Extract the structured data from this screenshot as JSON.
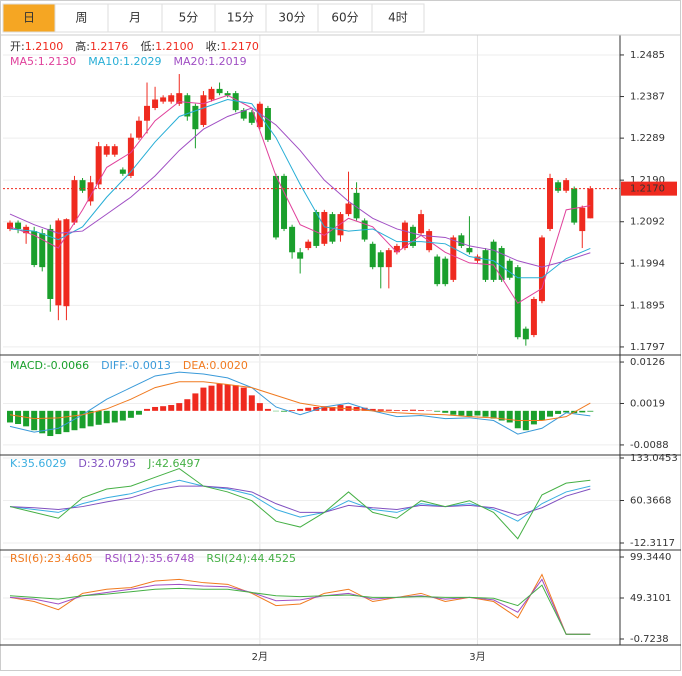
{
  "tabs": {
    "items": [
      "日",
      "周",
      "月",
      "5分",
      "15分",
      "30分",
      "60分",
      "4时"
    ],
    "active": 0
  },
  "chart_data": [
    {
      "type": "candlestick",
      "header": [
        {
          "label": "开:",
          "value": "1.2100"
        },
        {
          "label": "高:",
          "value": "1.2176"
        },
        {
          "label": "低:",
          "value": "1.2100"
        },
        {
          "label": "收:",
          "value": "1.2170"
        }
      ],
      "categories": [
        null,
        null,
        null,
        null,
        null,
        null,
        null,
        null,
        null,
        null,
        null,
        null,
        null,
        null,
        null,
        null,
        null,
        null,
        null,
        null,
        null,
        null,
        null,
        null,
        null,
        null,
        null,
        null,
        null,
        null,
        null,
        "2月",
        null,
        null,
        null,
        null,
        null,
        null,
        null,
        null,
        null,
        null,
        null,
        null,
        null,
        null,
        null,
        null,
        null,
        null,
        null,
        null,
        null,
        null,
        null,
        null,
        null,
        null,
        "3月",
        null,
        null,
        null,
        null,
        null,
        null,
        null,
        null,
        null,
        null,
        null,
        null,
        null,
        null
      ],
      "open": [
        1.2075,
        1.209,
        1.2065,
        1.207,
        1.2065,
        1.2075,
        1.1895,
        1.1893,
        1.209,
        1.219,
        1.214,
        1.218,
        1.225,
        1.225,
        1.2215,
        1.22,
        1.229,
        1.233,
        1.236,
        1.2375,
        1.2375,
        1.237,
        1.239,
        1.2365,
        1.232,
        1.238,
        1.2405,
        1.2395,
        1.2395,
        1.2355,
        1.235,
        1.2315,
        1.236,
        1.22,
        1.22,
        1.208,
        1.202,
        1.203,
        1.2115,
        1.204,
        1.211,
        1.206,
        1.211,
        1.216,
        1.2095,
        1.204,
        1.202,
        1.1985,
        1.202,
        1.203,
        1.208,
        1.2065,
        1.2025,
        1.201,
        1.2005,
        1.1955,
        1.206,
        1.203,
        1.2,
        1.2025,
        1.2045,
        1.203,
        1.2,
        1.1985,
        1.184,
        1.1825,
        1.1905,
        1.2075,
        1.2185,
        1.2165,
        1.217,
        1.207,
        1.21
      ],
      "high": [
        1.2095,
        1.2095,
        1.2085,
        1.208,
        1.2075,
        1.2085,
        1.21,
        1.21,
        1.22,
        1.2195,
        1.22,
        1.228,
        1.2275,
        1.2275,
        1.222,
        1.23,
        1.234,
        1.242,
        1.241,
        1.239,
        1.2395,
        1.244,
        1.2395,
        1.237,
        1.24,
        1.241,
        1.242,
        1.24,
        1.24,
        1.236,
        1.2355,
        1.2375,
        1.2365,
        1.2205,
        1.2205,
        1.2085,
        1.203,
        1.205,
        1.212,
        1.212,
        1.2115,
        1.2115,
        1.221,
        1.2185,
        1.21,
        1.2045,
        1.2025,
        1.203,
        1.204,
        1.2095,
        1.2085,
        1.212,
        1.2075,
        1.2015,
        1.201,
        1.206,
        1.2065,
        1.2105,
        1.2015,
        1.203,
        1.205,
        1.2035,
        1.2005,
        1.199,
        1.1845,
        1.1915,
        1.206,
        1.2205,
        1.219,
        1.2195,
        1.2175,
        1.213,
        1.2176
      ],
      "low": [
        1.207,
        1.2065,
        1.204,
        1.1985,
        1.1975,
        1.188,
        1.186,
        1.186,
        1.2085,
        1.216,
        1.213,
        1.217,
        1.2245,
        1.2245,
        1.22,
        1.2195,
        1.2285,
        1.23,
        1.2355,
        1.237,
        1.237,
        1.2365,
        1.233,
        1.2265,
        1.2315,
        1.2375,
        1.239,
        1.2385,
        1.235,
        1.233,
        1.232,
        1.231,
        1.228,
        1.205,
        1.207,
        1.2005,
        1.197,
        1.2025,
        1.203,
        1.2035,
        1.204,
        1.2045,
        1.2105,
        1.2095,
        1.2045,
        1.198,
        1.1935,
        1.1935,
        1.2015,
        1.2025,
        1.203,
        1.206,
        1.202,
        1.194,
        1.194,
        1.195,
        1.203,
        1.2015,
        1.1995,
        1.195,
        1.195,
        1.195,
        1.1955,
        1.1815,
        1.18,
        1.182,
        1.19,
        1.207,
        1.216,
        1.216,
        1.2085,
        1.203,
        1.21
      ],
      "close": [
        1.209,
        1.2075,
        1.208,
        1.199,
        1.1985,
        1.191,
        1.2095,
        1.2098,
        1.219,
        1.2165,
        1.2185,
        1.227,
        1.227,
        1.227,
        1.2205,
        1.229,
        1.233,
        1.2365,
        1.238,
        1.2385,
        1.239,
        1.2395,
        1.234,
        1.231,
        1.239,
        1.2405,
        1.2395,
        1.239,
        1.2355,
        1.2335,
        1.2325,
        1.237,
        1.2285,
        1.2055,
        1.2075,
        1.202,
        1.2005,
        1.2045,
        1.2035,
        1.2115,
        1.2045,
        1.211,
        1.2135,
        1.21,
        1.205,
        1.1985,
        1.1985,
        1.2025,
        1.2035,
        1.209,
        1.2035,
        1.211,
        1.207,
        1.1945,
        1.1945,
        1.2055,
        1.2035,
        1.202,
        1.201,
        1.1955,
        1.1955,
        1.1955,
        1.196,
        1.182,
        1.1815,
        1.191,
        1.2055,
        1.2195,
        1.2165,
        1.219,
        1.209,
        1.2125,
        1.217
      ],
      "up_color": "#ef2a1f",
      "down_color": "#1a9f2c",
      "ylim": [
        1.1778,
        1.2532
      ],
      "yticks": [
        1.2485,
        1.2387,
        1.2289,
        {
          "value": 1.219,
          "label": "1.2190"
        },
        1.2092,
        1.1994,
        1.1895,
        1.1797
      ],
      "last_price": {
        "value": 1.217,
        "label": "1.2170"
      },
      "x": [
        0,
        3,
        6,
        9,
        12,
        15,
        18,
        21,
        24,
        27,
        30,
        33,
        36,
        39,
        42,
        45,
        48,
        51,
        54,
        57,
        60,
        63,
        66,
        69,
        72
      ],
      "series": [
        {
          "name": "MA5:",
          "value_label": "1.2130",
          "color": "#e0419b",
          "values": [
            1.208,
            1.206,
            1.203,
            1.212,
            1.222,
            1.2255,
            1.233,
            1.2375,
            1.237,
            1.239,
            1.236,
            1.22,
            1.2085,
            1.206,
            1.21,
            1.208,
            1.202,
            1.206,
            1.202,
            1.1995,
            1.199,
            1.19,
            1.1935,
            1.212,
            1.213
          ]
        },
        {
          "name": "MA10:",
          "value_label": "1.2029",
          "color": "#27aed6",
          "values": [
            1.2075,
            1.207,
            1.205,
            1.208,
            1.215,
            1.221,
            1.228,
            1.234,
            1.236,
            1.238,
            1.237,
            1.229,
            1.218,
            1.208,
            1.207,
            1.2075,
            1.2045,
            1.2045,
            1.204,
            1.201,
            1.2,
            1.196,
            1.196,
            1.2005,
            1.2029
          ]
        },
        {
          "name": "MA20:",
          "value_label": "1.2019",
          "color": "#a04fc4",
          "values": [
            1.211,
            1.2085,
            1.2065,
            1.207,
            1.211,
            1.215,
            1.22,
            1.226,
            1.231,
            1.234,
            1.236,
            1.232,
            1.226,
            1.219,
            1.214,
            1.21,
            1.2075,
            1.206,
            1.2055,
            1.2035,
            1.2025,
            1.2,
            1.1985,
            1.2,
            1.2019
          ]
        }
      ]
    },
    {
      "type": "macd",
      "bar_name": "MACD:",
      "bar_value_label": "-0.0066",
      "bar_label_color": "#1a9f2c",
      "bars": [
        -0.003,
        -0.0034,
        -0.004,
        -0.005,
        -0.0058,
        -0.0065,
        -0.006,
        -0.0055,
        -0.005,
        -0.0045,
        -0.004,
        -0.0036,
        -0.0032,
        -0.003,
        -0.0025,
        -0.0018,
        -0.001,
        0.0005,
        0.001,
        0.0012,
        0.0015,
        0.002,
        0.003,
        0.0045,
        0.006,
        0.0065,
        0.007,
        0.0068,
        0.0066,
        0.006,
        0.004,
        0.002,
        0.0005,
        -0.0001,
        -0.0002,
        0.0002,
        0.0005,
        0.0008,
        0.001,
        0.0012,
        0.001,
        0.0015,
        0.0012,
        0.001,
        0.0008,
        0.0005,
        0.0004,
        0.0003,
        0.0002,
        0.0002,
        0.0003,
        0.0002,
        0.0001,
        -0.0002,
        -0.0005,
        -0.001,
        -0.0012,
        -0.0014,
        -0.0012,
        -0.0015,
        -0.002,
        -0.0025,
        -0.003,
        -0.0045,
        -0.005,
        -0.0035,
        -0.0025,
        -0.0015,
        -0.0008,
        -0.0004,
        -0.0006,
        -0.0004,
        -0.0002
      ],
      "up_color": "#ef2a1f",
      "down_color": "#1a9f2c",
      "ylim": [
        -0.0114,
        0.0139
      ],
      "yticks": [
        0.0126,
        0.0019,
        -0.0088
      ],
      "x": [
        0,
        3,
        6,
        9,
        12,
        15,
        18,
        21,
        24,
        27,
        30,
        33,
        36,
        39,
        42,
        45,
        48,
        51,
        54,
        57,
        60,
        63,
        66,
        69,
        72
      ],
      "series": [
        {
          "name": "DIFF:",
          "value_label": "-0.0013",
          "color": "#3a9ad9",
          "values": [
            -0.004,
            -0.0055,
            -0.0045,
            -0.001,
            0.003,
            0.006,
            0.009,
            0.01,
            0.0095,
            0.0085,
            0.006,
            0.001,
            -0.001,
            0.001,
            0.002,
            0.0,
            -0.0015,
            -0.0012,
            -0.002,
            -0.0018,
            -0.0025,
            -0.006,
            -0.0045,
            -0.0005,
            -0.0013
          ]
        },
        {
          "name": "DEA:",
          "value_label": "0.0020",
          "color": "#f07a20",
          "values": [
            -0.001,
            -0.002,
            -0.0018,
            -0.001,
            0.0005,
            0.003,
            0.006,
            0.0075,
            0.0075,
            0.0068,
            0.006,
            0.004,
            0.002,
            0.001,
            0.0005,
            0.0,
            -0.0005,
            -0.0008,
            -0.001,
            -0.0015,
            -0.0018,
            -0.0025,
            -0.0025,
            -0.0015,
            0.002
          ]
        }
      ]
    },
    {
      "type": "line",
      "ylim": [
        -24.28,
        138.18
      ],
      "yticks": [
        133.0453,
        60.3668,
        -12.3117
      ],
      "x": [
        0,
        3,
        6,
        9,
        12,
        15,
        18,
        21,
        24,
        27,
        30,
        33,
        36,
        39,
        42,
        45,
        48,
        51,
        54,
        57,
        60,
        63,
        66,
        69,
        72
      ],
      "series": [
        {
          "name": "K:",
          "value_label": "35.6029",
          "color": "#3aaee0",
          "values": [
            50,
            45,
            40,
            55,
            65,
            72,
            85,
            95,
            85,
            80,
            70,
            45,
            32,
            40,
            60,
            45,
            40,
            55,
            50,
            55,
            45,
            25,
            55,
            75,
            85
          ]
        },
        {
          "name": "D:",
          "value_label": "32.0795",
          "color": "#8050c0",
          "values": [
            50,
            48,
            45,
            50,
            58,
            65,
            78,
            85,
            85,
            82,
            75,
            55,
            40,
            40,
            52,
            48,
            45,
            52,
            50,
            52,
            48,
            35,
            48,
            68,
            80
          ]
        },
        {
          "name": "J:",
          "value_label": "42.6497",
          "color": "#45b045",
          "values": [
            50,
            40,
            30,
            65,
            80,
            85,
            100,
            115,
            85,
            75,
            60,
            25,
            15,
            40,
            75,
            40,
            30,
            60,
            50,
            60,
            40,
            -5,
            70,
            90,
            95
          ]
        }
      ]
    },
    {
      "type": "line",
      "ylim": [
        -8.05,
        107.89
      ],
      "yticks": [
        {
          "value": 99.344,
          "label": "99.3440"
        },
        49.3101,
        -0.7238
      ],
      "x": [
        0,
        3,
        6,
        9,
        12,
        15,
        18,
        21,
        24,
        27,
        30,
        33,
        36,
        39,
        42,
        45,
        48,
        51,
        54,
        57,
        60,
        63,
        66,
        69,
        72
      ],
      "series": [
        {
          "name": "RSI(6):",
          "value_label": "23.4605",
          "color": "#f07a20",
          "values": [
            50,
            45,
            35,
            55,
            60,
            62,
            70,
            72,
            68,
            66,
            55,
            40,
            42,
            55,
            60,
            45,
            50,
            55,
            45,
            50,
            45,
            25,
            78,
            5,
            5
          ]
        },
        {
          "name": "RSI(12):",
          "value_label": "35.6748",
          "color": "#a04fc4",
          "values": [
            50,
            48,
            42,
            52,
            56,
            60,
            65,
            66,
            64,
            63,
            56,
            46,
            47,
            52,
            55,
            48,
            50,
            52,
            48,
            50,
            47,
            32,
            72,
            5,
            5
          ]
        },
        {
          "name": "RSI(24):",
          "value_label": "44.4525",
          "color": "#45b045",
          "values": [
            52,
            50,
            48,
            52,
            54,
            57,
            60,
            61,
            60,
            60,
            56,
            52,
            51,
            52,
            53,
            50,
            50,
            51,
            50,
            50,
            49,
            40,
            65,
            5,
            5
          ]
        }
      ]
    }
  ]
}
